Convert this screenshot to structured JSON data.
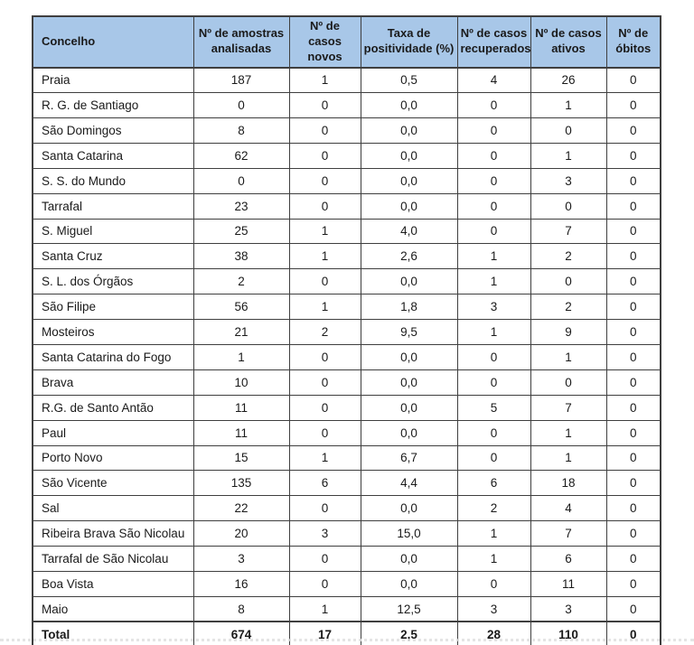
{
  "colors": {
    "header_bg": "#a8c7e8",
    "border": "#3f3f3f",
    "text": "#1a1a1a"
  },
  "table": {
    "columns": [
      "Concelho",
      "Nº de amostras analisadas",
      "Nº de casos novos",
      "Taxa de positividade (%)",
      "Nº de casos recuperados",
      "Nº de casos ativos",
      "Nº de óbitos"
    ],
    "rows": [
      {
        "cells": [
          "Praia",
          "187",
          "1",
          "0,5",
          "4",
          "26",
          "0"
        ]
      },
      {
        "cells": [
          "R. G. de Santiago",
          "0",
          "0",
          "0,0",
          "0",
          "1",
          "0"
        ]
      },
      {
        "cells": [
          "São Domingos",
          "8",
          "0",
          "0,0",
          "0",
          "0",
          "0"
        ]
      },
      {
        "cells": [
          "Santa Catarina",
          "62",
          "0",
          "0,0",
          "0",
          "1",
          "0"
        ]
      },
      {
        "cells": [
          "S. S. do Mundo",
          "0",
          "0",
          "0,0",
          "0",
          "3",
          "0"
        ]
      },
      {
        "cells": [
          "Tarrafal",
          "23",
          "0",
          "0,0",
          "0",
          "0",
          "0"
        ]
      },
      {
        "cells": [
          "S. Miguel",
          "25",
          "1",
          "4,0",
          "0",
          "7",
          "0"
        ]
      },
      {
        "cells": [
          "Santa Cruz",
          "38",
          "1",
          "2,6",
          "1",
          "2",
          "0"
        ]
      },
      {
        "cells": [
          "S. L. dos Órgãos",
          "2",
          "0",
          "0,0",
          "1",
          "0",
          "0"
        ]
      },
      {
        "cells": [
          "São Filipe",
          "56",
          "1",
          "1,8",
          "3",
          "2",
          "0"
        ]
      },
      {
        "cells": [
          "Mosteiros",
          "21",
          "2",
          "9,5",
          "1",
          "9",
          "0"
        ]
      },
      {
        "cells": [
          "Santa Catarina do Fogo",
          "1",
          "0",
          "0,0",
          "0",
          "1",
          "0"
        ]
      },
      {
        "cells": [
          "Brava",
          "10",
          "0",
          "0,0",
          "0",
          "0",
          "0"
        ]
      },
      {
        "cells": [
          "R.G. de Santo Antão",
          "11",
          "0",
          "0,0",
          "5",
          "7",
          "0"
        ]
      },
      {
        "cells": [
          "Paul",
          "11",
          "0",
          "0,0",
          "0",
          "1",
          "0"
        ]
      },
      {
        "cells": [
          "Porto Novo",
          "15",
          "1",
          "6,7",
          "0",
          "1",
          "0"
        ]
      },
      {
        "cells": [
          "São Vicente",
          "135",
          "6",
          "4,4",
          "6",
          "18",
          "0"
        ]
      },
      {
        "cells": [
          "Sal",
          "22",
          "0",
          "0,0",
          "2",
          "4",
          "0"
        ]
      },
      {
        "cells": [
          "Ribeira Brava São Nicolau",
          "20",
          "3",
          "15,0",
          "1",
          "7",
          "0"
        ]
      },
      {
        "cells": [
          "Tarrafal de São Nicolau",
          "3",
          "0",
          "0,0",
          "1",
          "6",
          "0"
        ]
      },
      {
        "cells": [
          "Boa Vista",
          "16",
          "0",
          "0,0",
          "0",
          "11",
          "0"
        ]
      },
      {
        "cells": [
          "Maio",
          "8",
          "1",
          "12,5",
          "3",
          "3",
          "0"
        ]
      }
    ],
    "total_row": {
      "cells": [
        "Total",
        "674",
        "17",
        "2,5",
        "28",
        "110",
        "0"
      ]
    }
  }
}
